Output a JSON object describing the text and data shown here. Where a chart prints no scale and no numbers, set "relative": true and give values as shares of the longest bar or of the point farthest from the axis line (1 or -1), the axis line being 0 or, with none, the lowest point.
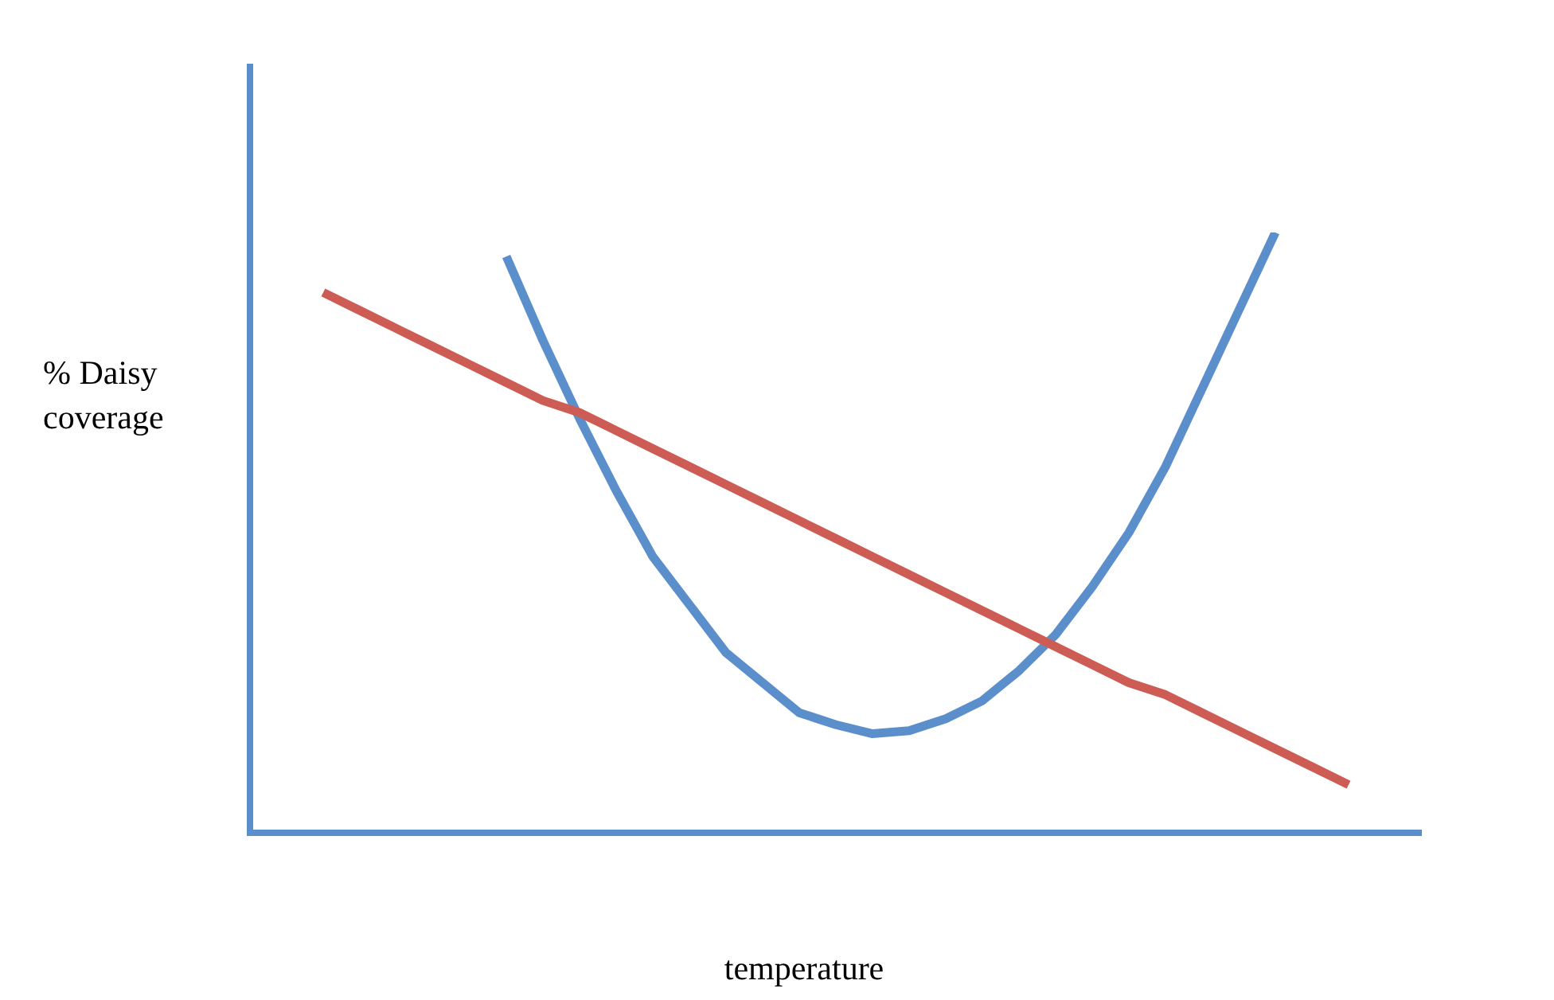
{
  "chart_data": {
    "type": "line",
    "relative": true,
    "xlabel": "temperature",
    "ylabel": "% Daisy coverage",
    "legend": false,
    "marker": "none",
    "line_style": "solid",
    "categories": [
      null,
      null,
      null,
      null,
      null,
      null,
      null,
      null,
      null,
      null,
      null,
      null,
      null,
      null,
      null,
      null,
      null,
      null,
      null,
      null,
      null,
      null,
      null,
      null,
      null,
      null,
      null,
      null,
      null,
      null,
      null,
      null,
      null
    ],
    "series": [
      {
        "color": "#cd5c54",
        "values": [
          null,
          null,
          0.9,
          0.87,
          0.84,
          0.81,
          0.78,
          0.75,
          0.72,
          0.7,
          0.67,
          0.64,
          0.61,
          0.58,
          0.55,
          0.52,
          0.49,
          0.46,
          0.43,
          0.4,
          0.37,
          0.34,
          0.31,
          0.28,
          0.25,
          0.23,
          0.2,
          0.17,
          0.14,
          0.11,
          0.08,
          null,
          null
        ]
      },
      {
        "color": "#5b8fcb",
        "values": [
          null,
          null,
          null,
          null,
          null,
          null,
          null,
          0.96,
          0.82,
          0.69,
          0.57,
          0.46,
          0.38,
          0.3,
          0.25,
          0.2,
          0.18,
          0.165,
          0.17,
          0.19,
          0.22,
          0.27,
          0.33,
          0.41,
          0.5,
          0.61,
          0.74,
          0.87,
          1.0,
          null,
          null,
          null,
          null
        ]
      }
    ]
  }
}
